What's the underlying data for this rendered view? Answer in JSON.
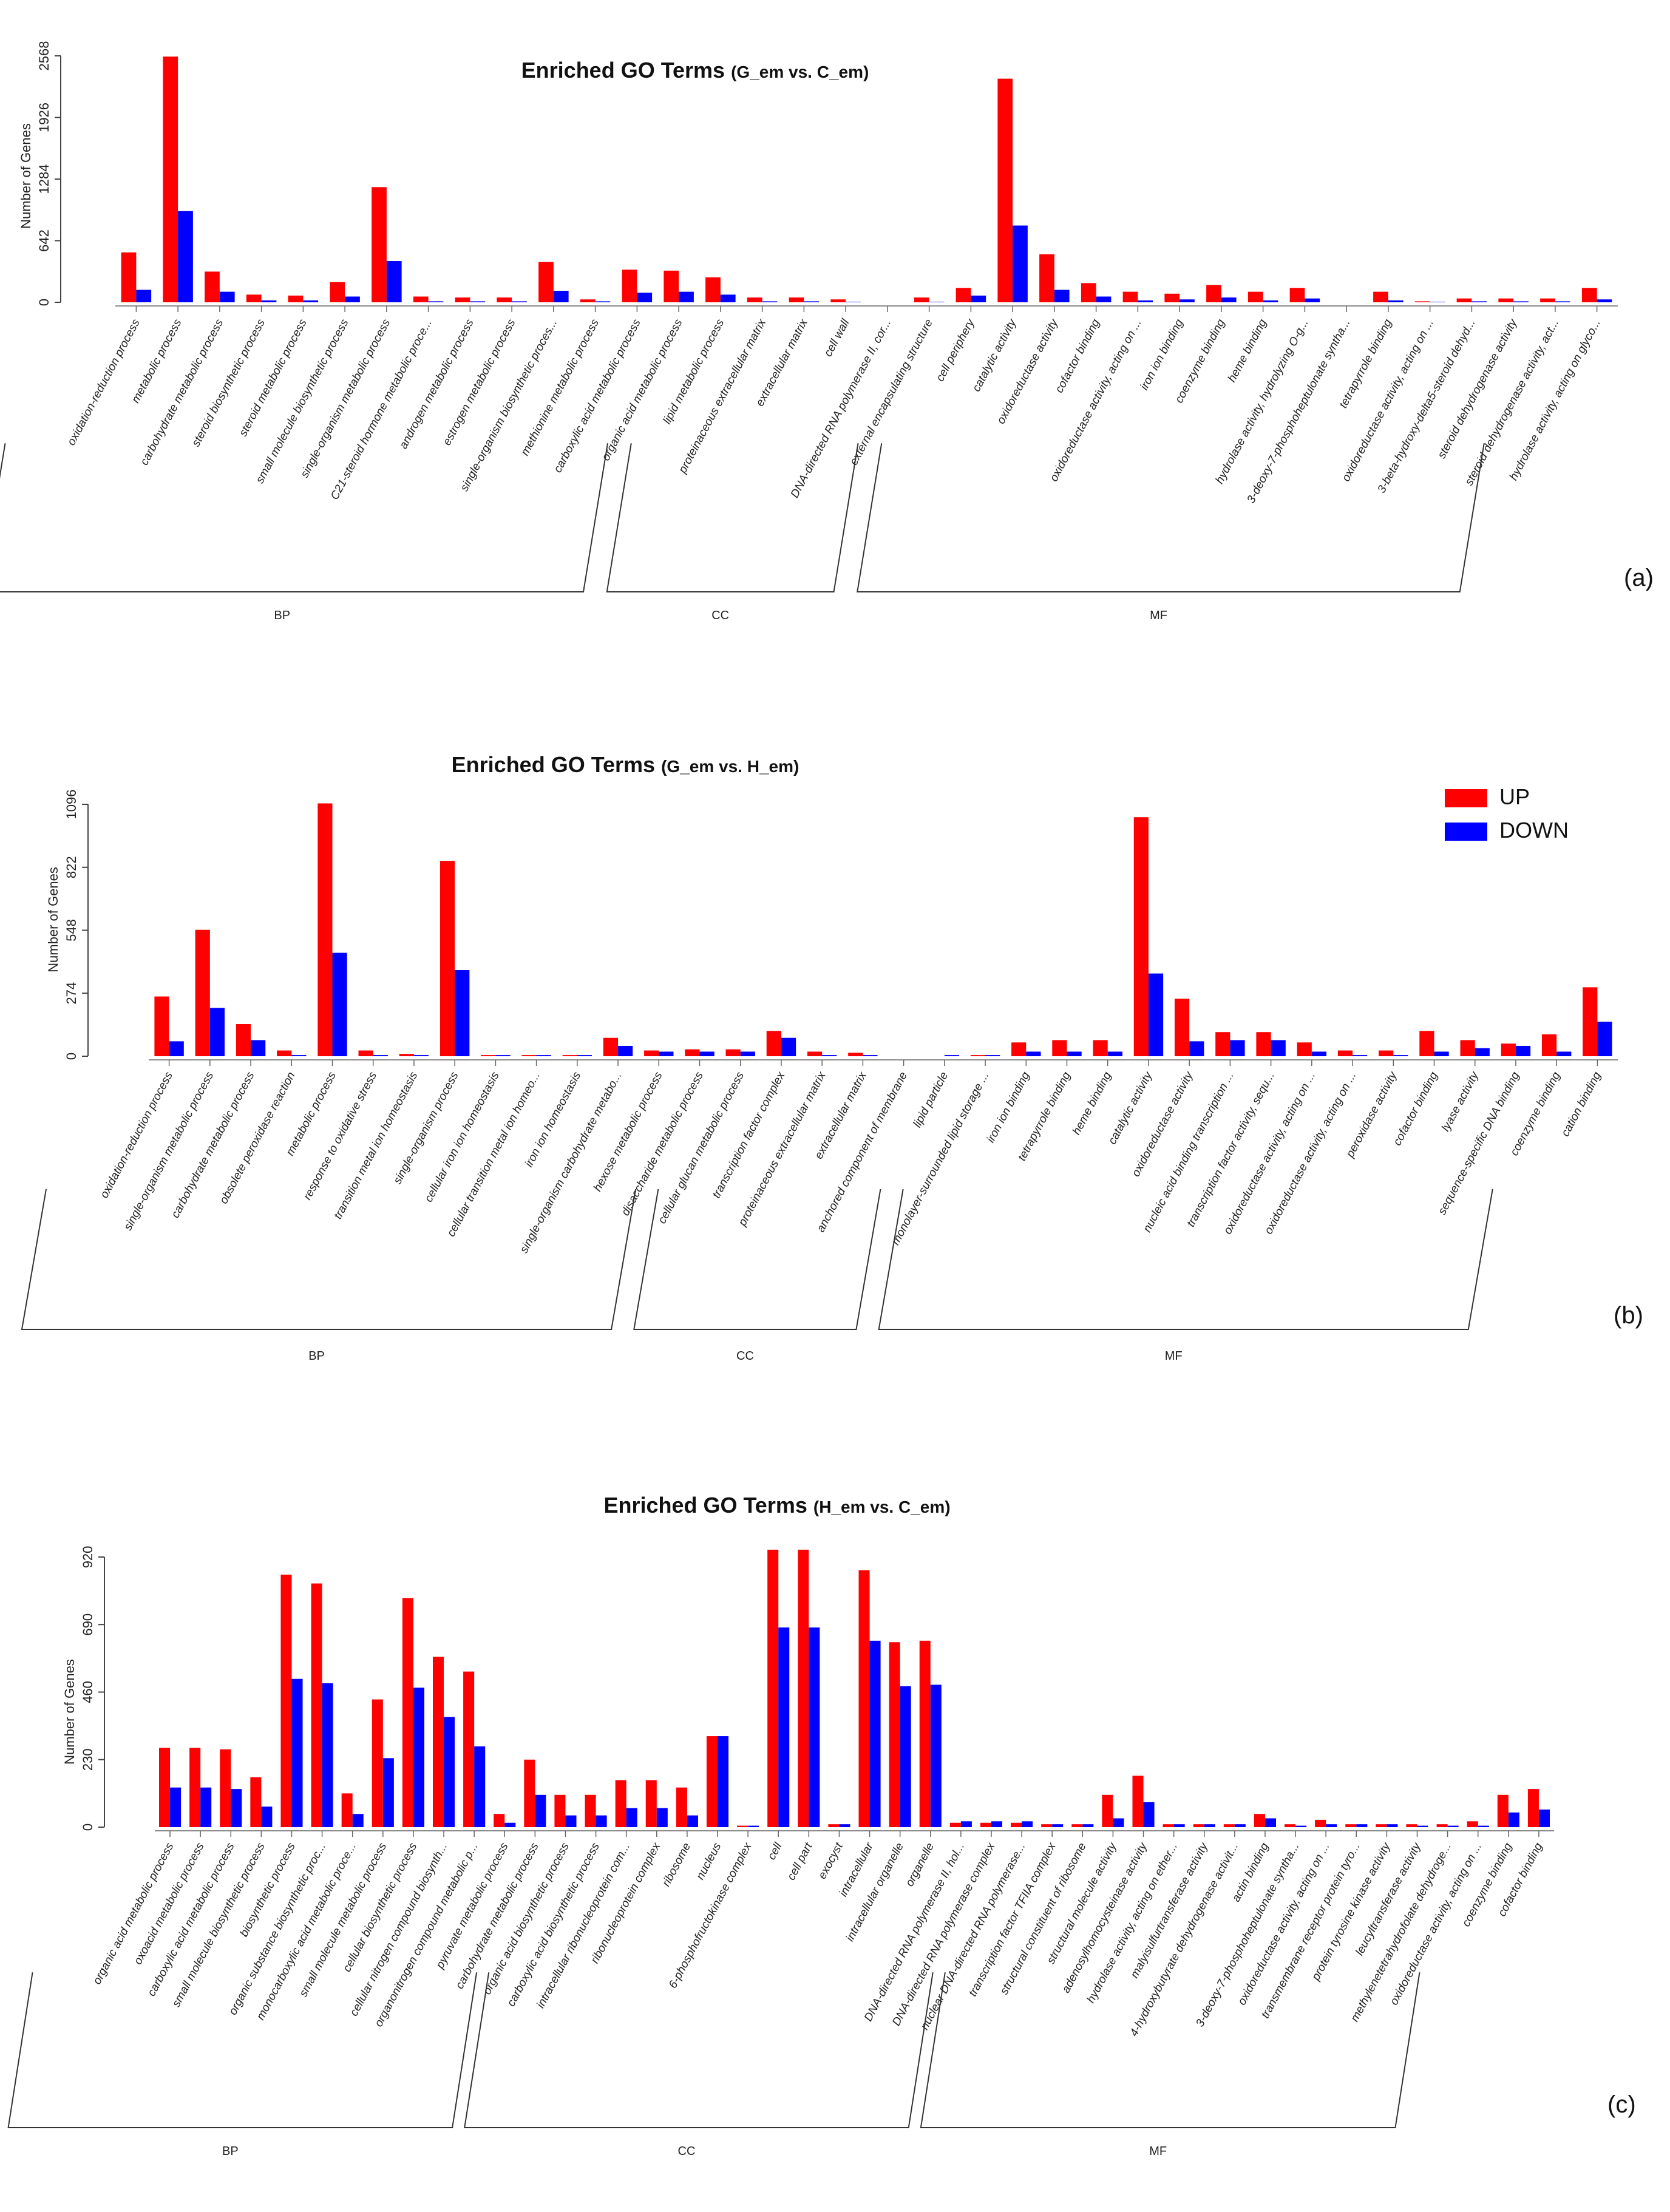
{
  "legend": {
    "items": [
      {
        "label": "UP",
        "color": "#ff0000"
      },
      {
        "label": "DOWN",
        "color": "#0000ff"
      }
    ]
  },
  "chart_data": [
    {
      "type": "bar",
      "panel_label": "(a)",
      "title": "Enriched GO Terms",
      "subtitle": "(G_em vs. C_em)",
      "ylabel": "Number of Genes",
      "ylim": [
        0,
        2568
      ],
      "yticks": [
        0,
        642,
        1284,
        1926,
        2568
      ],
      "series_colors": [
        "#ff0000",
        "#0000ff"
      ],
      "series": [
        {
          "name": "UP",
          "values": [
            520,
            2560,
            320,
            80,
            70,
            210,
            1200,
            60,
            50,
            50,
            420,
            30,
            340,
            330,
            260,
            50,
            50,
            30,
            0,
            50,
            150,
            2330,
            500,
            200,
            110,
            90,
            180,
            110,
            150,
            0,
            110,
            10,
            40,
            40,
            40,
            150
          ]
        },
        {
          "name": "DOWN",
          "values": [
            130,
            950,
            110,
            20,
            20,
            60,
            430,
            10,
            10,
            10,
            120,
            10,
            100,
            110,
            80,
            10,
            10,
            5,
            0,
            5,
            70,
            800,
            130,
            60,
            20,
            30,
            50,
            20,
            40,
            0,
            20,
            5,
            10,
            10,
            10,
            30
          ]
        }
      ],
      "categories": [
        "oxidation-reduction process",
        "metabolic process",
        "carbohydrate metabolic process",
        "steroid biosynthetic process",
        "steroid metabolic process",
        "small molecule biosynthetic process",
        "single-organism metabolic process",
        "C21-steroid hormone metabolic proce...",
        "androgen metabolic process",
        "estrogen metabolic process",
        "single-organism biosynthetic proces...",
        "methionine metabolic process",
        "carboxylic acid metabolic process",
        "organic acid metabolic process",
        "lipid metabolic process",
        "proteinaceous extracellular matrix",
        "extracellular matrix",
        "cell wall",
        "DNA-directed RNA polymerase II, cor...",
        "external encapsulating structure",
        "cell periphery",
        "catalytic activity",
        "oxidoreductase activity",
        "cofactor binding",
        "oxidoreductase activity, acting on ...",
        "iron ion binding",
        "coenzyme binding",
        "heme binding",
        "hydrolase activity, hydrolyzing O-g...",
        "3-deoxy-7-phosphoheptulonate syntha...",
        "tetrapyrrole binding",
        "oxidoreductase activity, acting on ...",
        "3-beta-hydroxy-delta5-steroid dehyd...",
        "steroid dehydrogenase activity",
        "steroid dehydrogenase activity, act...",
        "hydrolase activity, acting on glyco..."
      ],
      "groups": [
        {
          "label": "BP",
          "start": 0,
          "end": 14
        },
        {
          "label": "CC",
          "start": 15,
          "end": 20
        },
        {
          "label": "MF",
          "start": 21,
          "end": 35
        }
      ]
    },
    {
      "type": "bar",
      "panel_label": "(b)",
      "title": "Enriched GO Terms",
      "subtitle": "(G_em vs. H_em)",
      "ylabel": "Number of Genes",
      "ylim": [
        0,
        1096
      ],
      "yticks": [
        0,
        274,
        548,
        822,
        1096
      ],
      "series_colors": [
        "#ff0000",
        "#0000ff"
      ],
      "series": [
        {
          "name": "UP",
          "values": [
            260,
            550,
            140,
            25,
            1100,
            25,
            10,
            850,
            5,
            5,
            5,
            80,
            25,
            30,
            30,
            110,
            20,
            15,
            0,
            0,
            5,
            60,
            70,
            70,
            1040,
            250,
            105,
            105,
            60,
            25,
            25,
            110,
            70,
            55,
            95,
            300
          ]
        },
        {
          "name": "DOWN",
          "values": [
            65,
            210,
            70,
            5,
            450,
            5,
            5,
            375,
            5,
            5,
            5,
            45,
            20,
            20,
            20,
            80,
            5,
            5,
            0,
            5,
            5,
            20,
            20,
            20,
            360,
            65,
            70,
            70,
            20,
            5,
            5,
            20,
            35,
            45,
            20,
            150
          ]
        }
      ],
      "categories": [
        "oxidation-reduction process",
        "single-organism metabolic process",
        "carbohydrate metabolic process",
        "obsolete peroxidase reaction",
        "metabolic process",
        "response to oxidative stress",
        "transition metal ion homeostasis",
        "single-organism process",
        "cellular iron ion homeostasis",
        "cellular transition metal ion homeo...",
        "iron ion homeostasis",
        "single-organism carbohydrate metabo...",
        "hexose metabolic process",
        "disaccharide metabolic process",
        "cellular glucan metabolic process",
        "transcription factor complex",
        "proteinaceous extracellular matrix",
        "extracellular matrix",
        "anchored component of membrane",
        "lipid particle",
        "monolayer-surrounded lipid storage ...",
        "iron ion binding",
        "tetrapyrrole binding",
        "heme binding",
        "catalytic activity",
        "oxidoreductase activity",
        "nucleic acid binding transcription ...",
        "transcription factor activity, sequ...",
        "oxidoreductase activity, acting on ...",
        "oxidoreductase activity, acting on ...",
        "peroxidase activity",
        "cofactor binding",
        "lyase activity",
        "sequence-specific DNA binding",
        "coenzyme binding",
        "cation binding"
      ],
      "groups": [
        {
          "label": "BP",
          "start": 0,
          "end": 14
        },
        {
          "label": "CC",
          "start": 15,
          "end": 20
        },
        {
          "label": "MF",
          "start": 21,
          "end": 35
        }
      ]
    },
    {
      "type": "bar",
      "panel_label": "(c)",
      "title": "Enriched GO Terms",
      "subtitle": "(H_em vs. C_em)",
      "ylabel": "Number of Genes",
      "ylim": [
        0,
        920
      ],
      "yticks": [
        0,
        230,
        460,
        690,
        920
      ],
      "series_colors": [
        "#ff0000",
        "#0000ff"
      ],
      "series": [
        {
          "name": "UP",
          "values": [
            270,
            270,
            265,
            170,
            860,
            830,
            115,
            435,
            780,
            580,
            530,
            45,
            230,
            110,
            110,
            160,
            160,
            135,
            310,
            5,
            945,
            945,
            10,
            875,
            630,
            635,
            15,
            15,
            15,
            10,
            10,
            110,
            175,
            10,
            10,
            10,
            45,
            10,
            25,
            10,
            10,
            10,
            10,
            20,
            110,
            130
          ]
        },
        {
          "name": "DOWN",
          "values": [
            135,
            135,
            130,
            70,
            505,
            490,
            45,
            235,
            475,
            375,
            275,
            15,
            110,
            40,
            40,
            65,
            65,
            40,
            310,
            5,
            680,
            680,
            10,
            635,
            480,
            485,
            20,
            20,
            20,
            10,
            10,
            30,
            85,
            10,
            10,
            10,
            30,
            5,
            10,
            10,
            10,
            5,
            5,
            5,
            50,
            60
          ]
        }
      ],
      "categories": [
        "organic acid metabolic process",
        "oxoacid metabolic process",
        "carboxylic acid metabolic process",
        "small molecule biosynthetic process",
        "biosynthetic process",
        "organic substance biosynthetic proc...",
        "monocarboxylic acid metabolic proce...",
        "small molecule metabolic process",
        "cellular biosynthetic process",
        "cellular nitrogen compound biosynth...",
        "organonitrogen compound metabolic p...",
        "pyruvate metabolic process",
        "carbohydrate metabolic process",
        "organic acid biosynthetic process",
        "carboxylic acid biosynthetic process",
        "intracellular ribonucleoprotein com...",
        "ribonucleoprotein complex",
        "ribosome",
        "nucleus",
        "6-phosphofructokinase complex",
        "cell",
        "cell part",
        "exocyst",
        "intracellular",
        "intracellular organelle",
        "organelle",
        "DNA-directed RNA polymerase II, hol...",
        "DNA-directed RNA polymerase complex",
        "nuclear DNA-directed RNA polymerase...",
        "transcription factor TFIIA complex",
        "structural constituent of ribosome",
        "structural molecule activity",
        "adenosylhomocysteinase activity",
        "hydrolase activity, acting on ether...",
        "malyisulfurtransferase activity",
        "4-hydroxybutyrate dehydrogenase activit...",
        "actin binding",
        "3-deoxy-7-phosphoheptulonate syntha...",
        "oxidoreductase activity, acting on ...",
        "transmembrane receptor protein tyro...",
        "protein tyrosine kinase activity",
        "leucyltransferase activity",
        "methylenetetrahydrofolate dehydroge...",
        "oxidoreductase activity, acting on ...",
        "coenzyme binding",
        "cofactor binding"
      ],
      "groups": [
        {
          "label": "BP",
          "start": 0,
          "end": 14
        },
        {
          "label": "CC",
          "start": 15,
          "end": 29
        },
        {
          "label": "MF",
          "start": 30,
          "end": 45
        }
      ]
    }
  ]
}
